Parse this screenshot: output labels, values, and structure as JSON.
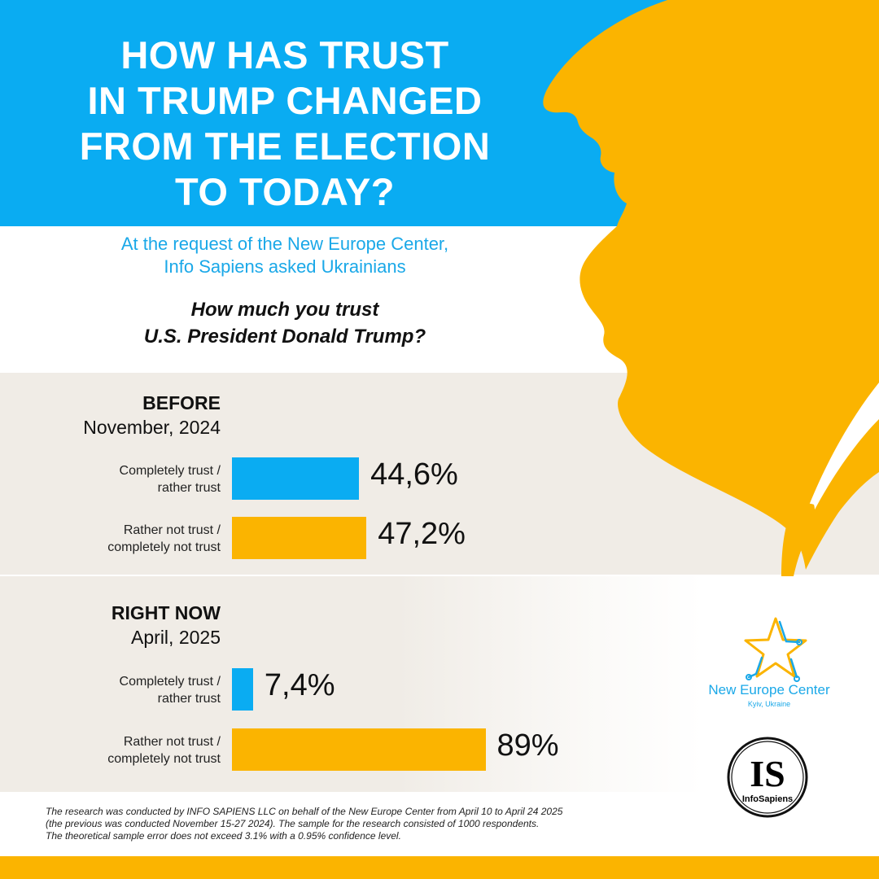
{
  "title_lines": [
    "HOW HAS TRUST",
    "IN TRUMP CHANGED",
    "FROM THE ELECTION",
    "TO TODAY?"
  ],
  "subtitle_lines": [
    "At the request of the New Europe Center,",
    "Info Sapiens asked Ukrainians"
  ],
  "question_lines": [
    "How much you trust",
    "U.S. President Donald Trump?"
  ],
  "colors": {
    "trust": "#0aacf2",
    "distrust": "#fbb400",
    "band": "#f0ece6"
  },
  "chart_data": {
    "type": "bar",
    "orientation": "horizontal",
    "unit": "%",
    "xlim": [
      0,
      100
    ],
    "groups": [
      {
        "label": "BEFORE",
        "date": "November, 2024",
        "bars": [
          {
            "category_lines": [
              "Completely trust /",
              "rather trust"
            ],
            "value": 44.6,
            "display": "44,6%",
            "color": "#0aacf2"
          },
          {
            "category_lines": [
              "Rather not trust /",
              "completely not trust"
            ],
            "value": 47.2,
            "display": "47,2%",
            "color": "#fbb400"
          }
        ]
      },
      {
        "label": "RIGHT NOW",
        "date": "April, 2025",
        "bars": [
          {
            "category_lines": [
              "Completely trust /",
              "rather trust"
            ],
            "value": 7.4,
            "display": "7,4%",
            "color": "#0aacf2"
          },
          {
            "category_lines": [
              "Rather not trust /",
              "completely not trust"
            ],
            "value": 89,
            "display": "89%",
            "color": "#fbb400"
          }
        ]
      }
    ]
  },
  "footnote_lines": [
    "The research was conducted by INFO SAPIENS LLC on behalf of the New Europe Center from April 10 to April 24 2025",
    "(the previous was conducted November 15-27 2024). The sample for the research consisted of 1000 respondents.",
    "The theoretical sample error does not exceed 3.1% with a 0.95% confidence level."
  ],
  "logos": {
    "nec_name": "New Europe Center",
    "nec_location": "Kyiv, Ukraine",
    "is_mark": "IS",
    "is_name": "InfoSapiens"
  }
}
